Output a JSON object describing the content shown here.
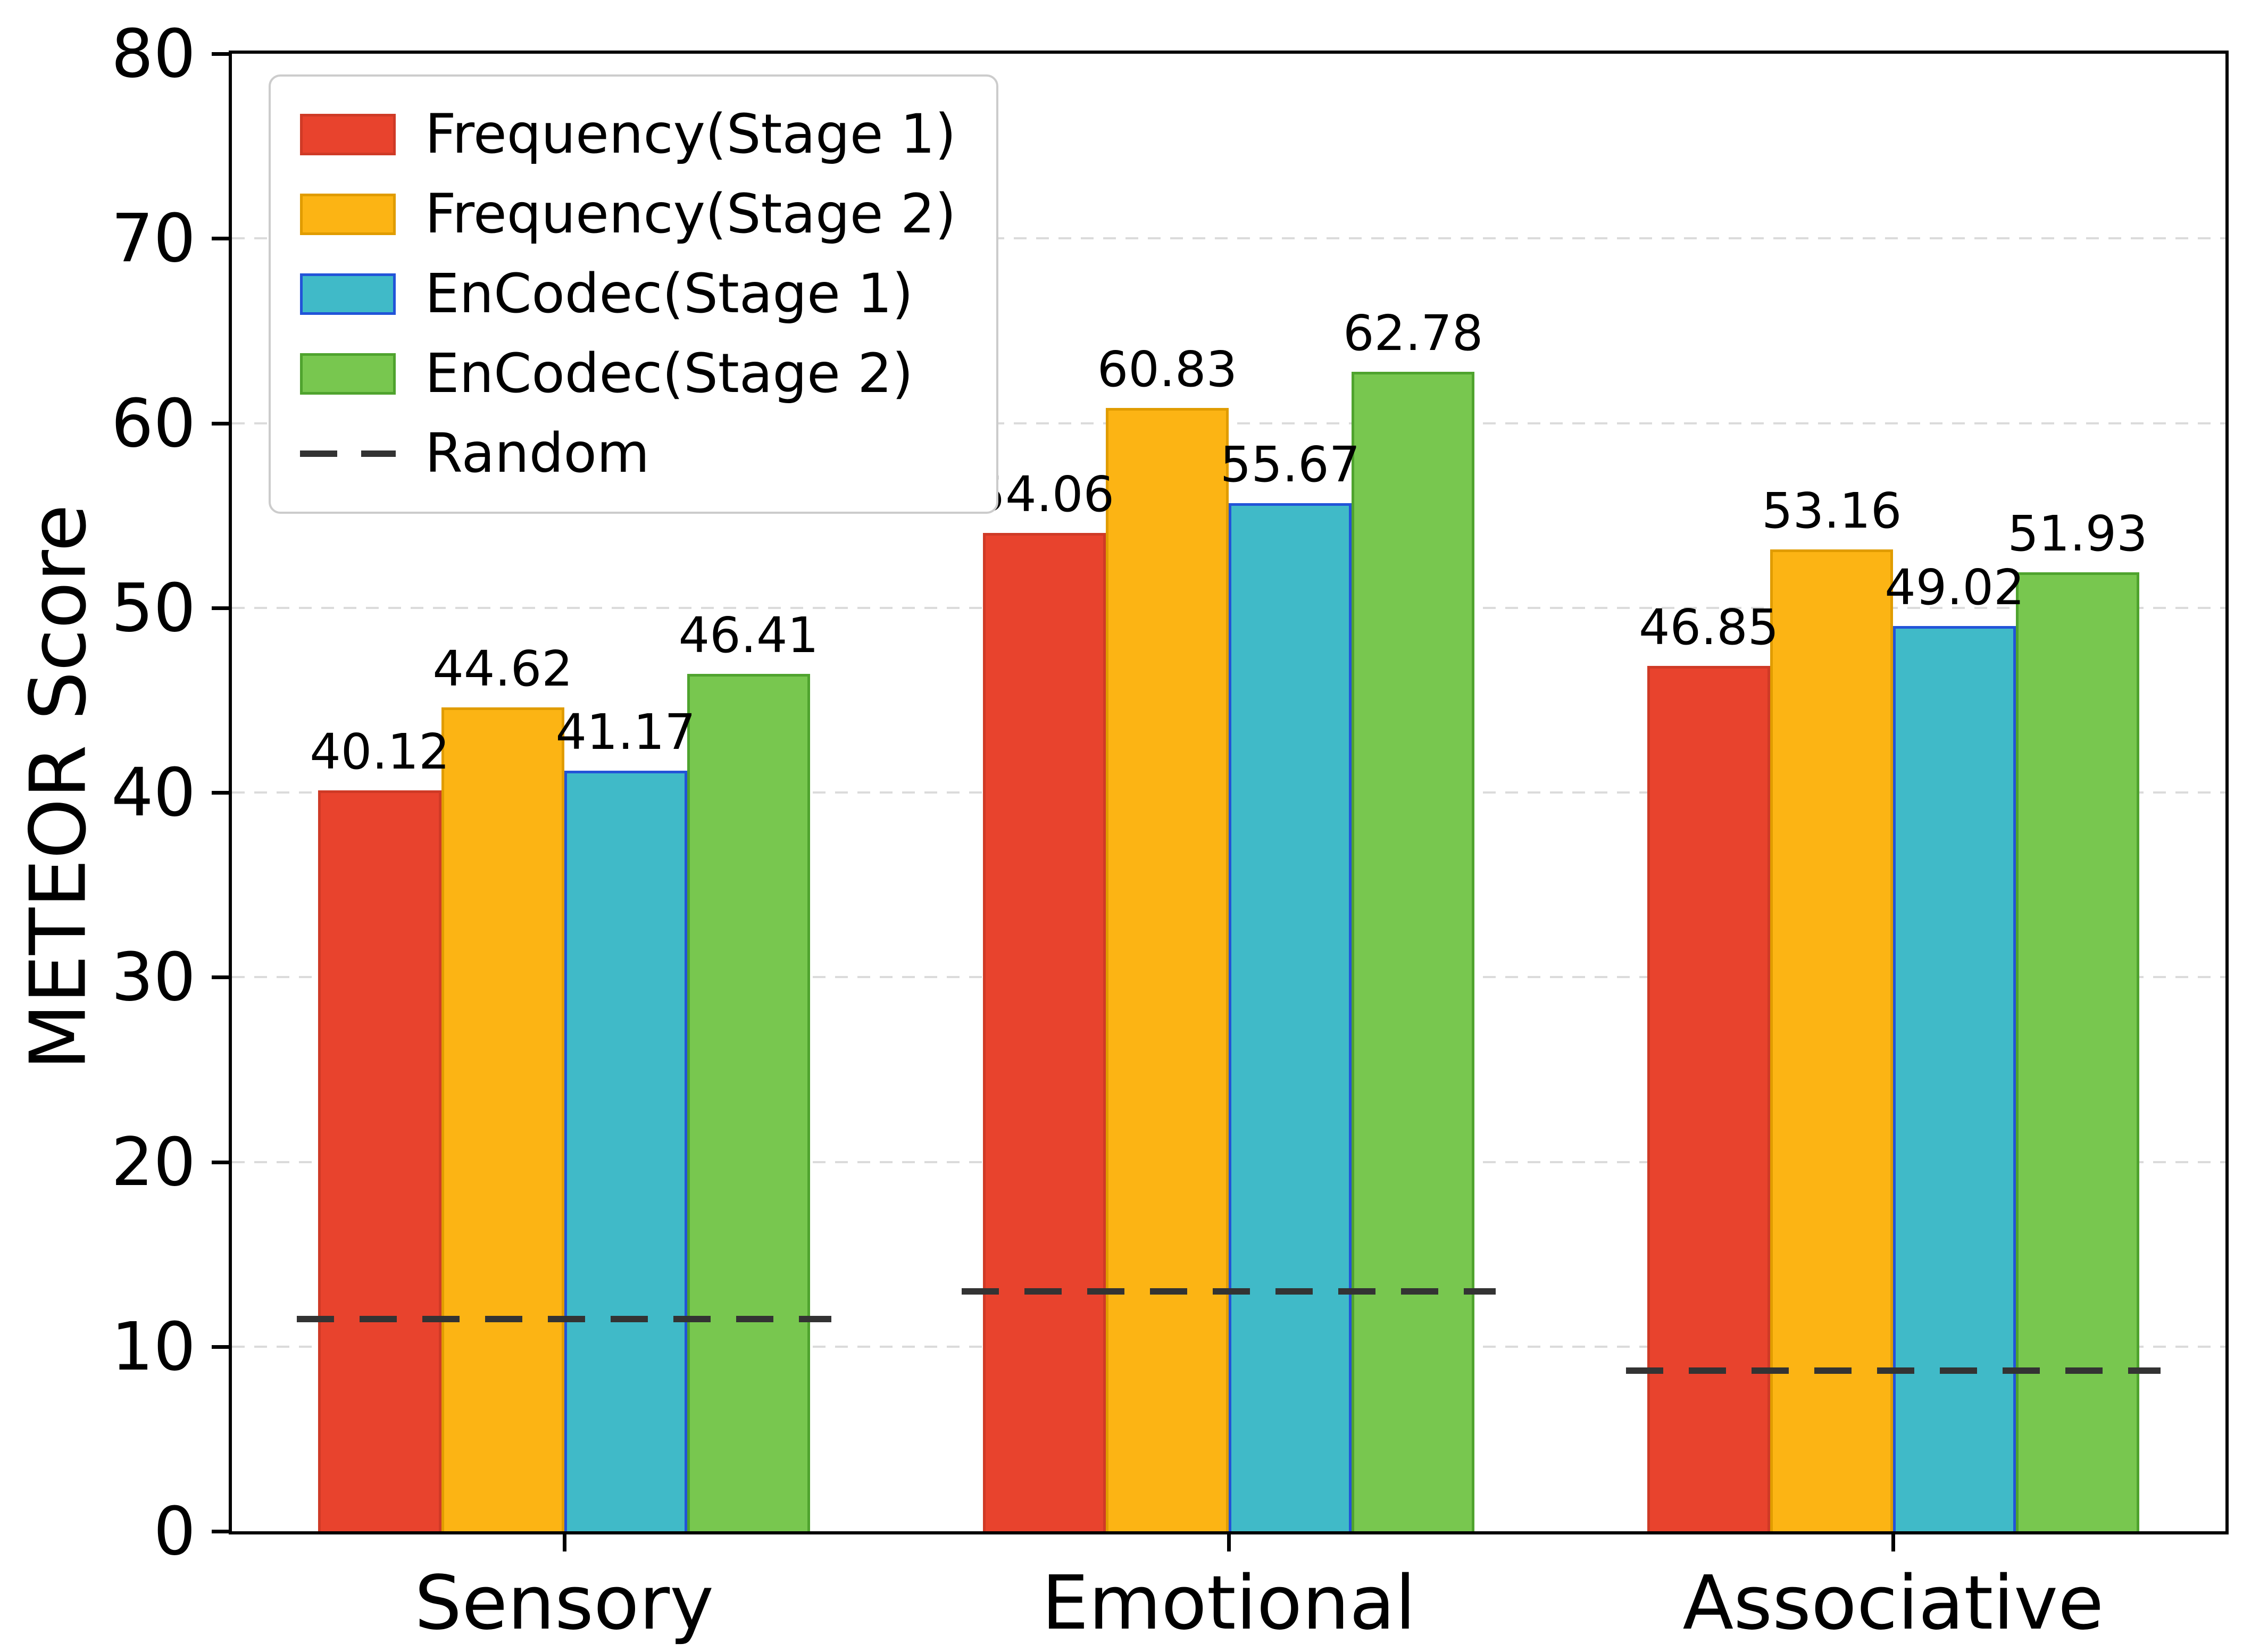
{
  "chart_data": {
    "type": "bar",
    "title": "",
    "xlabel": "",
    "ylabel": "METEOR Score",
    "ylim": [
      0,
      80
    ],
    "yticks": [
      0,
      10,
      20,
      30,
      40,
      50,
      60,
      70,
      80
    ],
    "grid": "horizontal-dashed",
    "legend_position": "upper left",
    "categories": [
      "Sensory",
      "Emotional",
      "Associative"
    ],
    "series": [
      {
        "name": "Frequency(Stage 1)",
        "color": "#e8432d",
        "edge": "#cf3a26",
        "values": [
          40.12,
          54.06,
          46.85
        ]
      },
      {
        "name": "Frequency(Stage 2)",
        "color": "#fcb414",
        "edge": "#e09c00",
        "values": [
          44.62,
          60.83,
          53.16
        ]
      },
      {
        "name": "EnCodec(Stage 1)",
        "color": "#40bac8",
        "edge": "#2254d8",
        "values": [
          41.17,
          55.67,
          49.02
        ]
      },
      {
        "name": "EnCodec(Stage 2)",
        "color": "#78c74f",
        "edge": "#4fa32e",
        "values": [
          46.41,
          62.78,
          51.93
        ]
      }
    ],
    "random_line": {
      "name": "Random",
      "color": "#333333",
      "values": [
        11.5,
        13.0,
        8.7
      ]
    },
    "value_label_decimals": 2,
    "colors": {
      "background": "#ffffff",
      "axis": "#000000",
      "gridline": "#dbdbdb",
      "legend_border": "#cccccc"
    }
  }
}
